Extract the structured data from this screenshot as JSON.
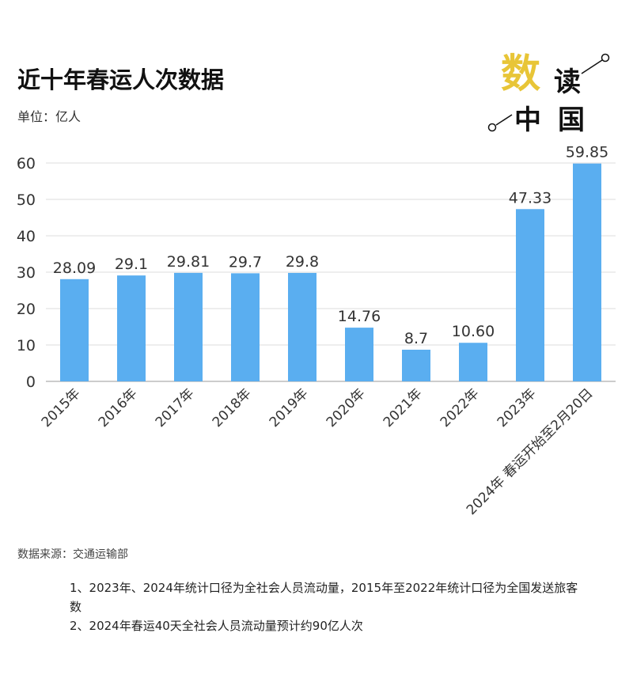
{
  "header": {
    "title": "近十年春运人次数据",
    "unit": "单位：亿人"
  },
  "logo": {
    "text": "数读中国",
    "accent": "#e8c537"
  },
  "footer": {
    "source": "数据来源：交通运输部",
    "notes": [
      "1、2023年、2024年统计口径为全社会人员流动量，2015年至2022年统计口径为全国发送旅客数",
      "2、2024年春运40天全社会人员流动量预计约90亿人次"
    ]
  },
  "chart_data": {
    "type": "bar",
    "title": "近十年春运人次数据",
    "ylabel": "单位：亿人",
    "categories": [
      "2015年",
      "2016年",
      "2017年",
      "2018年",
      "2019年",
      "2020年",
      "2021年",
      "2022年",
      "2023年",
      "2024年 春运开始至2月20日"
    ],
    "values": [
      28.09,
      29.1,
      29.81,
      29.7,
      29.8,
      14.76,
      8.7,
      10.6,
      47.33,
      59.85
    ],
    "labels": [
      "28.09",
      "29.1",
      "29.81",
      "29.7",
      "29.8",
      "14.76",
      "8.7",
      "10.60",
      "47.33",
      "59.85"
    ],
    "ylim": [
      0,
      60
    ],
    "yticks": [
      0,
      10,
      20,
      30,
      40,
      50,
      60
    ],
    "grid": true,
    "bar_color": "#5aaef0"
  }
}
